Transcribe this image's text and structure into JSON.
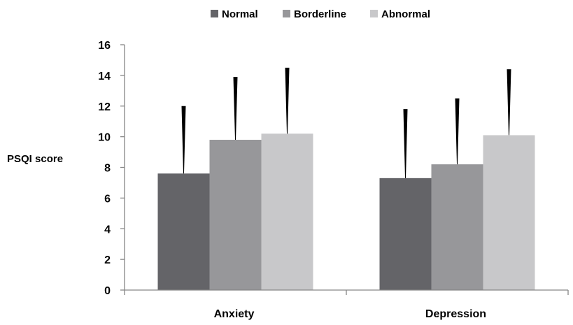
{
  "chart_data": {
    "type": "bar",
    "categories": [
      "Anxiety",
      "Depression"
    ],
    "ylabel": "PSQI score",
    "ylim": [
      0,
      16
    ],
    "yticks": [
      0,
      2,
      4,
      6,
      8,
      10,
      12,
      14,
      16
    ],
    "grid": false,
    "legend_position": "top",
    "error_bars": "upper",
    "series": [
      {
        "name": "Normal",
        "color": "#646468",
        "values": [
          7.6,
          7.3
        ],
        "errors": [
          4.4,
          4.5
        ]
      },
      {
        "name": "Borderline",
        "color": "#97979a",
        "values": [
          9.8,
          8.2
        ],
        "errors": [
          4.1,
          4.3
        ]
      },
      {
        "name": "Abnormal",
        "color": "#c8c8ca",
        "values": [
          10.2,
          10.1
        ],
        "errors": [
          4.3,
          4.3
        ]
      }
    ]
  }
}
